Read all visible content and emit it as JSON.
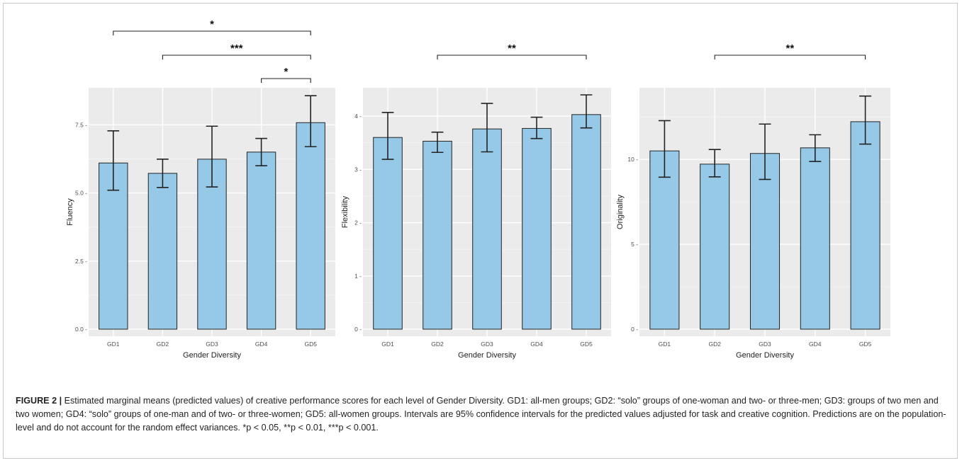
{
  "chart_data": [
    {
      "type": "bar",
      "categories": [
        "GD1",
        "GD2",
        "GD3",
        "GD4",
        "GD5"
      ],
      "values": [
        6.1,
        5.72,
        6.24,
        6.5,
        7.58
      ],
      "ci_low": [
        5.1,
        5.2,
        5.22,
        6.0,
        6.7
      ],
      "ci_high": [
        7.28,
        6.24,
        7.45,
        7.0,
        8.57
      ],
      "ylim": [
        0,
        8.6
      ],
      "yticks": [
        0,
        2.5,
        5,
        7.5
      ],
      "ytick_labels": [
        "0.0 -",
        "2.5 -",
        "5.0 -",
        "7.5 -"
      ],
      "xlabel": "Gender Diversity",
      "ylabel": "Fluency",
      "bar_color": "#96c9e8",
      "significance": [
        {
          "from": "GD1",
          "to": "GD5",
          "label": "*"
        },
        {
          "from": "GD2",
          "to": "GD5",
          "label": "***"
        },
        {
          "from": "GD4",
          "to": "GD5",
          "label": "*"
        }
      ]
    },
    {
      "type": "bar",
      "categories": [
        "GD1",
        "GD2",
        "GD3",
        "GD4",
        "GD5"
      ],
      "values": [
        3.6,
        3.53,
        3.76,
        3.77,
        4.03
      ],
      "ci_low": [
        3.19,
        3.32,
        3.33,
        3.58,
        3.78
      ],
      "ci_high": [
        4.07,
        3.7,
        4.24,
        3.98,
        4.4
      ],
      "ylim": [
        0,
        4.4
      ],
      "yticks": [
        0,
        1,
        2,
        3,
        4
      ],
      "ytick_labels": [
        "0 -",
        "1 -",
        "2 -",
        "3 -",
        "4 -"
      ],
      "xlabel": "Gender Diversity",
      "ylabel": "Flexibility",
      "bar_color": "#96c9e8",
      "significance": [
        {
          "from": "GD2",
          "to": "GD5",
          "label": "**"
        }
      ]
    },
    {
      "type": "bar",
      "categories": [
        "GD1",
        "GD2",
        "GD3",
        "GD4",
        "GD5"
      ],
      "values": [
        10.5,
        9.72,
        10.35,
        10.68,
        12.22
      ],
      "ci_low": [
        8.95,
        8.97,
        8.82,
        9.88,
        10.9
      ],
      "ci_high": [
        12.28,
        10.58,
        12.08,
        11.45,
        13.73
      ],
      "ylim": [
        0,
        13.8
      ],
      "yticks": [
        0,
        5,
        10
      ],
      "ytick_labels": [
        "0 -",
        "5 -",
        "10 -"
      ],
      "xlabel": "Gender Diversity",
      "ylabel": "Originality",
      "bar_color": "#96c9e8",
      "significance": [
        {
          "from": "GD2",
          "to": "GD5",
          "label": "**"
        }
      ]
    }
  ],
  "caption": {
    "label": "FIGURE 2 |",
    "text": " Estimated marginal means (predicted values) of creative performance scores for each level of Gender Diversity. GD1: all-men groups; GD2: “solo” groups of one-woman and two- or three-men; GD3: groups of two men and two women; GD4: “solo” groups of one-man and of two- or three-women; GD5: all-women groups. Intervals are 95% confidence intervals for the predicted values adjusted for task and creative cognition. Predictions are on the population-level and do not account for the random effect variances. *p < 0.05, **p < 0.01, ***p < 0.001."
  }
}
